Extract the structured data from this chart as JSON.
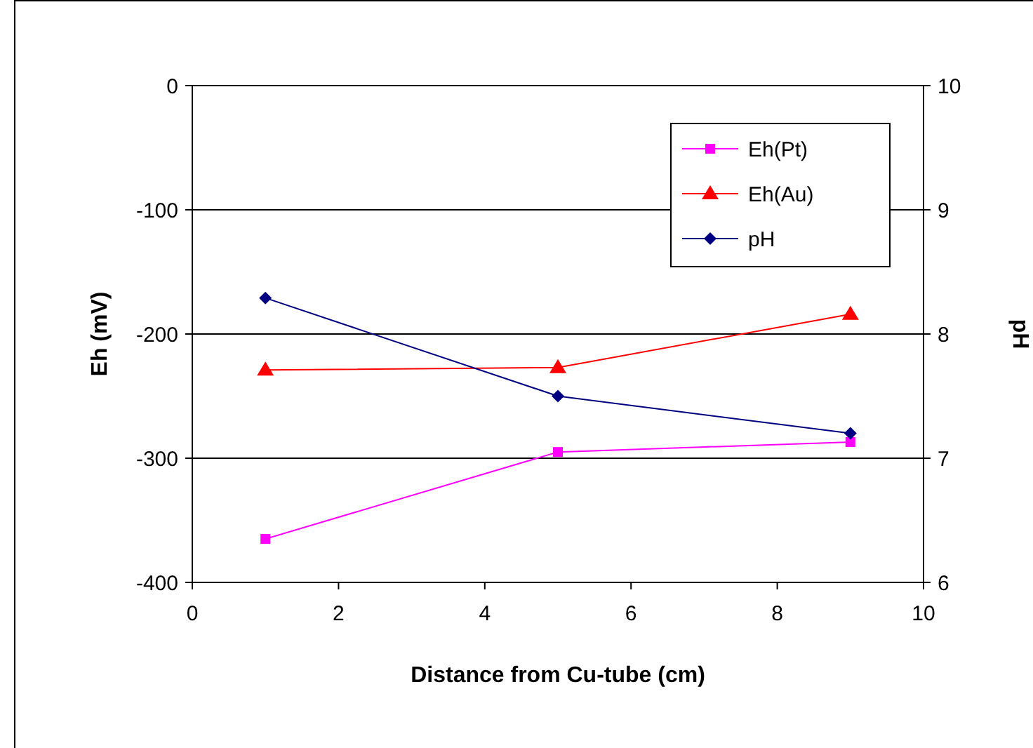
{
  "chart_data": {
    "type": "line",
    "xlabel": "Distance from Cu-tube (cm)",
    "ylabel": "Eh (mV)",
    "y2label": "pH",
    "x": [
      1,
      5,
      9
    ],
    "xlim": [
      0,
      10
    ],
    "xticks": [
      0,
      2,
      4,
      6,
      8,
      10
    ],
    "ylim": [
      -400,
      0
    ],
    "yticks": [
      -400,
      -300,
      -200,
      -100,
      0
    ],
    "y2lim": [
      6,
      10
    ],
    "y2ticks": [
      6,
      7,
      8,
      9,
      10
    ],
    "grid": "y",
    "legend": "top right",
    "series": [
      {
        "name": "Eh(Pt)",
        "color": "#ff00ff",
        "marker": "square",
        "values": [
          -365,
          -295,
          -287
        ]
      },
      {
        "name": "Eh(Au)",
        "color": "#ff0000",
        "marker": "triangle",
        "values": [
          -229,
          -227,
          -184
        ]
      },
      {
        "name": "pH",
        "color": "#000080",
        "marker": "diamond",
        "axis": "y2",
        "values": [
          8.29,
          7.5,
          7.2
        ]
      }
    ]
  }
}
